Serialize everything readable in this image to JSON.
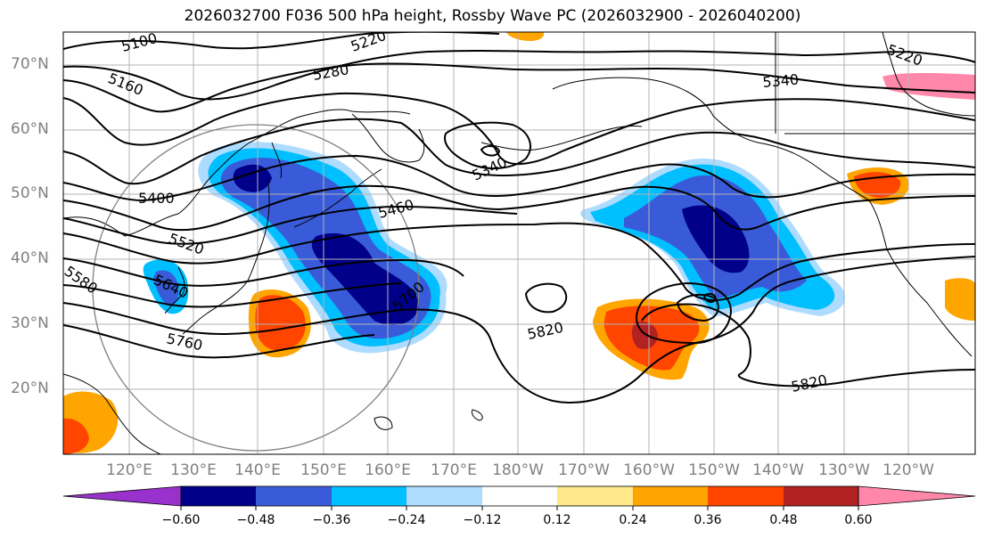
{
  "title": "2026032700 F036 500 hPa height, Rossby Wave PC (2026032900 - 2026040200)",
  "lat_labels": [
    "70°N",
    "60°N",
    "50°N",
    "40°N",
    "30°N",
    "20°N"
  ],
  "lon_labels": [
    "120°E",
    "130°E",
    "140°E",
    "150°E",
    "160°E",
    "170°E",
    "180°W",
    "170°W",
    "160°W",
    "150°W",
    "140°W",
    "130°W",
    "120°W"
  ],
  "contour_labels": [
    "5100",
    "5220",
    "5160",
    "5280",
    "5220",
    "5340",
    "5340",
    "5400",
    "5460",
    "5520",
    "5580",
    "5640",
    "5700",
    "5760",
    "5820",
    "5820"
  ],
  "colorbar": {
    "ticks": [
      "−0.60",
      "−0.48",
      "−0.36",
      "−0.24",
      "−0.12",
      "0.12",
      "0.24",
      "0.36",
      "0.48",
      "0.60"
    ],
    "colors": [
      "#9932CC",
      "#00008B",
      "#3A5BD9",
      "#00BFFF",
      "#ADDCFF",
      "#FFFFFF",
      "#FFE88A",
      "#FFA500",
      "#FF4500",
      "#B22222",
      "#FF88AA"
    ]
  },
  "shading_colors": {
    "neg_light": "#ADDCFF",
    "neg_mid": "#00BFFF",
    "neg_strong": "#3A5BD9",
    "neg_max": "#00008B",
    "pos_light": "#FFE88A",
    "pos_mid": "#FFA500",
    "pos_strong": "#FF4500",
    "pos_max": "#B22222"
  }
}
